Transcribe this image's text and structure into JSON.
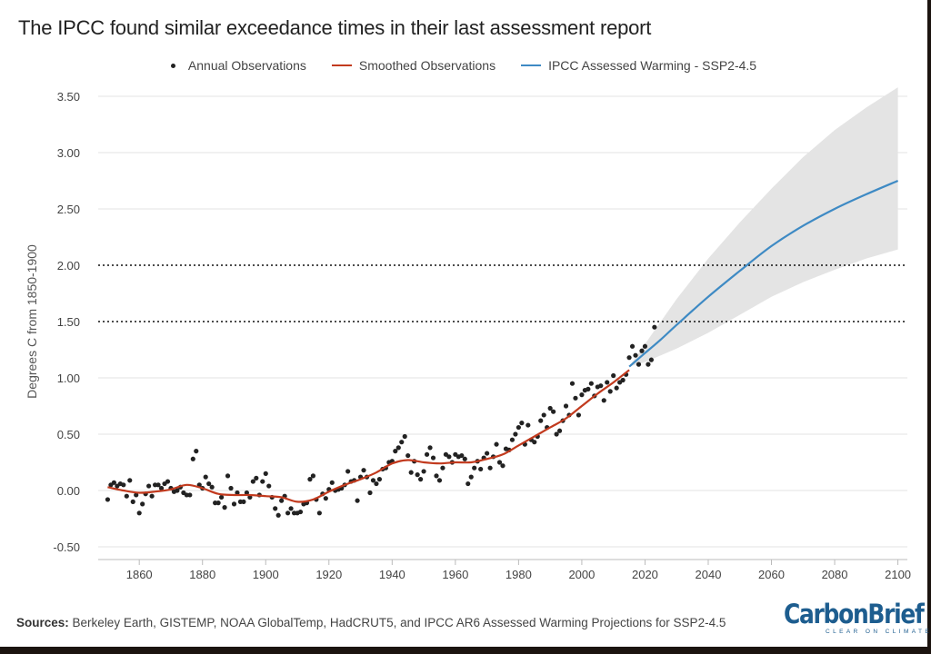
{
  "title": "The IPCC found similar exceedance times in their last assessment report",
  "legend": {
    "annual": "Annual Observations",
    "smoothed": "Smoothed Observations",
    "ipcc": "IPCC Assessed Warming - SSP2-4.5"
  },
  "colors": {
    "annual": "#222222",
    "smoothed": "#c23a1e",
    "ipcc": "#3e8ac4",
    "band": "#e4e4e4",
    "threshold": "#111111",
    "brand": "#1d5d8f"
  },
  "source": {
    "label": "Sources:",
    "text": "Berkeley Earth, GISTEMP, NOAA GlobalTemp, HadCRUT5, and IPCC AR6 Assessed Warming Projections for SSP2-4.5"
  },
  "logo": {
    "name": "CarbonBrief",
    "tagline": "CLEAR ON CLIMATE"
  },
  "chart_data": {
    "type": "line",
    "title": "The IPCC found similar exceedance times in their last assessment report",
    "xlabel": "",
    "ylabel": "Degrees C from 1850-1900",
    "xlim": [
      1847,
      2103
    ],
    "ylim": [
      -0.5,
      3.5
    ],
    "x_ticks": [
      1860,
      1880,
      1900,
      1920,
      1940,
      1960,
      1980,
      2000,
      2020,
      2040,
      2060,
      2080,
      2100
    ],
    "y_ticks": [
      -0.5,
      0,
      0.5,
      1,
      1.5,
      2,
      2.5,
      3,
      3.5
    ],
    "y_tick_labels": [
      "-0.50",
      "0.00",
      "0.50",
      "1.00",
      "1.50",
      "2.00",
      "2.50",
      "3.00",
      "3.50"
    ],
    "thresholds": [
      1.5,
      2.0
    ],
    "grid": true,
    "legend_position": "top-center",
    "series": [
      {
        "name": "Annual Observations",
        "kind": "scatter",
        "x": [
          1850,
          1851,
          1852,
          1853,
          1854,
          1855,
          1856,
          1857,
          1858,
          1859,
          1860,
          1861,
          1862,
          1863,
          1864,
          1865,
          1866,
          1867,
          1868,
          1869,
          1870,
          1871,
          1872,
          1873,
          1874,
          1875,
          1876,
          1877,
          1878,
          1879,
          1880,
          1881,
          1882,
          1883,
          1884,
          1885,
          1886,
          1887,
          1888,
          1889,
          1890,
          1891,
          1892,
          1893,
          1894,
          1895,
          1896,
          1897,
          1898,
          1899,
          1900,
          1901,
          1902,
          1903,
          1904,
          1905,
          1906,
          1907,
          1908,
          1909,
          1910,
          1911,
          1912,
          1913,
          1914,
          1915,
          1916,
          1917,
          1918,
          1919,
          1920,
          1921,
          1922,
          1923,
          1924,
          1925,
          1926,
          1927,
          1928,
          1929,
          1930,
          1931,
          1932,
          1933,
          1934,
          1935,
          1936,
          1937,
          1938,
          1939,
          1940,
          1941,
          1942,
          1943,
          1944,
          1945,
          1946,
          1947,
          1948,
          1949,
          1950,
          1951,
          1952,
          1953,
          1954,
          1955,
          1956,
          1957,
          1958,
          1959,
          1960,
          1961,
          1962,
          1963,
          1964,
          1965,
          1966,
          1967,
          1968,
          1969,
          1970,
          1971,
          1972,
          1973,
          1974,
          1975,
          1976,
          1977,
          1978,
          1979,
          1980,
          1981,
          1982,
          1983,
          1984,
          1985,
          1986,
          1987,
          1988,
          1989,
          1990,
          1991,
          1992,
          1993,
          1994,
          1995,
          1996,
          1997,
          1998,
          1999,
          2000,
          2001,
          2002,
          2003,
          2004,
          2005,
          2006,
          2007,
          2008,
          2009,
          2010,
          2011,
          2012,
          2013,
          2014,
          2015,
          2016,
          2017,
          2018,
          2019,
          2020,
          2021,
          2022,
          2023
        ],
        "y": [
          -0.08,
          0.05,
          0.07,
          0.04,
          0.06,
          0.05,
          -0.05,
          0.09,
          -0.1,
          -0.04,
          -0.2,
          -0.12,
          -0.03,
          0.04,
          -0.05,
          0.05,
          0.05,
          0.02,
          0.06,
          0.08,
          0.02,
          -0.01,
          0,
          0.03,
          -0.02,
          -0.04,
          -0.04,
          0.28,
          0.35,
          0.05,
          0.02,
          0.12,
          0.06,
          0.03,
          -0.11,
          -0.11,
          -0.06,
          -0.15,
          0.13,
          0.02,
          -0.12,
          -0.02,
          -0.1,
          -0.1,
          -0.02,
          -0.06,
          0.08,
          0.11,
          -0.04,
          0.08,
          0.15,
          0.04,
          -0.06,
          -0.16,
          -0.22,
          -0.09,
          -0.05,
          -0.2,
          -0.16,
          -0.2,
          -0.2,
          -0.19,
          -0.12,
          -0.11,
          0.1,
          0.13,
          -0.08,
          -0.2,
          -0.03,
          -0.07,
          0.01,
          0.07,
          0,
          0.01,
          0.02,
          0.05,
          0.17,
          0.08,
          0.09,
          -0.09,
          0.12,
          0.18,
          0.12,
          -0.02,
          0.09,
          0.06,
          0.1,
          0.19,
          0.2,
          0.25,
          0.26,
          0.35,
          0.38,
          0.43,
          0.48,
          0.31,
          0.16,
          0.26,
          0.14,
          0.1,
          0.17,
          0.32,
          0.38,
          0.29,
          0.13,
          0.09,
          0.2,
          0.32,
          0.3,
          0.25,
          0.32,
          0.3,
          0.31,
          0.28,
          0.06,
          0.12,
          0.2,
          0.26,
          0.19,
          0.29,
          0.33,
          0.2,
          0.3,
          0.41,
          0.25,
          0.22,
          0.37,
          0.36,
          0.45,
          0.5,
          0.56,
          0.6,
          0.41,
          0.58,
          0.45,
          0.43,
          0.48,
          0.62,
          0.67,
          0.56,
          0.73,
          0.7,
          0.5,
          0.53,
          0.62,
          0.75,
          0.67,
          0.95,
          0.82,
          0.67,
          0.85,
          0.89,
          0.9,
          0.95,
          0.84,
          0.92,
          0.93,
          0.8,
          0.96,
          0.88,
          1.02,
          0.91,
          0.96,
          0.98,
          1.03,
          1.18,
          1.28,
          1.2,
          1.12,
          1.24,
          1.28,
          1.12,
          1.16,
          1.45
        ]
      },
      {
        "name": "Smoothed Observations",
        "kind": "line",
        "x": [
          1850,
          1855,
          1860,
          1865,
          1870,
          1875,
          1880,
          1885,
          1890,
          1895,
          1900,
          1905,
          1910,
          1915,
          1920,
          1925,
          1930,
          1935,
          1940,
          1945,
          1950,
          1955,
          1960,
          1965,
          1970,
          1975,
          1980,
          1985,
          1990,
          1995,
          2000,
          2005,
          2010,
          2015
        ],
        "y": [
          0.03,
          0.0,
          -0.02,
          -0.01,
          0.01,
          0.05,
          0.02,
          -0.03,
          -0.04,
          -0.04,
          -0.05,
          -0.06,
          -0.1,
          -0.08,
          -0.01,
          0.05,
          0.1,
          0.16,
          0.24,
          0.27,
          0.25,
          0.24,
          0.25,
          0.25,
          0.28,
          0.32,
          0.4,
          0.48,
          0.56,
          0.64,
          0.75,
          0.86,
          0.96,
          1.07
        ]
      },
      {
        "name": "IPCC Assessed Warming - SSP2-4.5",
        "kind": "line",
        "x": [
          2015,
          2020,
          2025,
          2030,
          2040,
          2050,
          2060,
          2070,
          2080,
          2090,
          2100
        ],
        "y": [
          1.1,
          1.22,
          1.34,
          1.47,
          1.72,
          1.95,
          2.17,
          2.35,
          2.5,
          2.63,
          2.75
        ]
      },
      {
        "name": "IPCC Assessed Warming - SSP2-4.5 range",
        "kind": "band",
        "x": [
          2015,
          2020,
          2025,
          2030,
          2040,
          2050,
          2060,
          2070,
          2080,
          2090,
          2100
        ],
        "low": [
          1.1,
          1.14,
          1.2,
          1.26,
          1.4,
          1.56,
          1.72,
          1.85,
          1.96,
          2.06,
          2.14
        ],
        "high": [
          1.1,
          1.3,
          1.5,
          1.7,
          2.06,
          2.38,
          2.68,
          2.96,
          3.2,
          3.4,
          3.58
        ]
      }
    ]
  }
}
